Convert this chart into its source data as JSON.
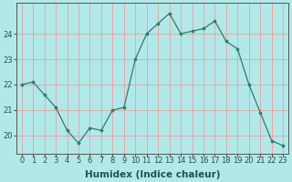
{
  "xlabel": "Humidex (Indice chaleur)",
  "x": [
    0,
    1,
    2,
    3,
    4,
    5,
    6,
    7,
    8,
    9,
    10,
    11,
    12,
    13,
    14,
    15,
    16,
    17,
    18,
    19,
    20,
    21,
    22,
    23
  ],
  "y": [
    22.0,
    22.1,
    21.6,
    21.1,
    20.2,
    19.7,
    20.3,
    20.2,
    21.0,
    21.1,
    23.0,
    24.0,
    24.4,
    24.8,
    24.0,
    24.1,
    24.2,
    24.5,
    23.7,
    23.4,
    22.0,
    20.9,
    19.8,
    19.6
  ],
  "line_color": "#2e7d6e",
  "marker": "o",
  "marker_size": 2.2,
  "bg_color": "#b3e8e8",
  "grid_color": "#e8a0a0",
  "axis_color": "#555555",
  "ylim": [
    19.3,
    25.2
  ],
  "yticks": [
    20,
    21,
    22,
    23,
    24
  ],
  "xticks": [
    0,
    1,
    2,
    3,
    4,
    5,
    6,
    7,
    8,
    9,
    10,
    11,
    12,
    13,
    14,
    15,
    16,
    17,
    18,
    19,
    20,
    21,
    22,
    23
  ],
  "tick_fontsize": 6,
  "label_fontsize": 7.5
}
